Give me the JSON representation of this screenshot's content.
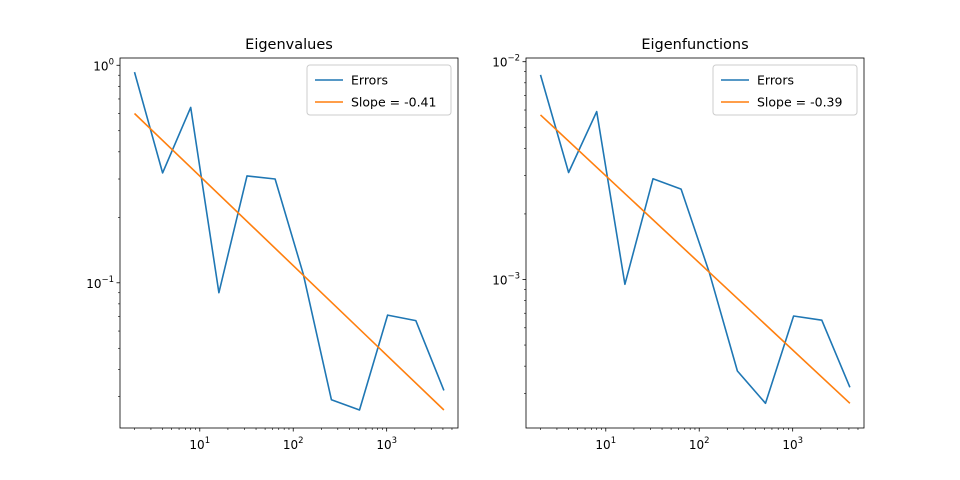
{
  "chart_data": [
    {
      "type": "line",
      "title": "Eigenvalues",
      "xscale": "log",
      "yscale": "log",
      "xlim": [
        1.4,
        5800
      ],
      "ylim": [
        0.0215,
        1.08
      ],
      "xticks": [
        {
          "value": 10,
          "base": "10",
          "exp": "1"
        },
        {
          "value": 100,
          "base": "10",
          "exp": "2"
        },
        {
          "value": 1000,
          "base": "10",
          "exp": "3"
        }
      ],
      "yticks": [
        {
          "value": 1,
          "base": "10",
          "exp": "0"
        },
        {
          "value": 0.1,
          "base": "10",
          "exp": "−1"
        }
      ],
      "legend_position": "top-right",
      "series": [
        {
          "name": "Errors",
          "color": "#1f77b4",
          "x": [
            2,
            4,
            8,
            16,
            32,
            64,
            128,
            256,
            512,
            1024,
            2048,
            4096
          ],
          "y": [
            0.93,
            0.32,
            0.64,
            0.09,
            0.31,
            0.3,
            0.11,
            0.029,
            0.026,
            0.071,
            0.067,
            0.032
          ]
        },
        {
          "name": "Slope = -0.41",
          "color": "#ff7f0e",
          "x": [
            2,
            4096
          ],
          "y": [
            0.6,
            0.026
          ]
        }
      ]
    },
    {
      "type": "line",
      "title": "Eigenfunctions",
      "xscale": "log",
      "yscale": "log",
      "xlim": [
        1.4,
        5800
      ],
      "ylim": [
        0.000208,
        0.0104
      ],
      "xticks": [
        {
          "value": 10,
          "base": "10",
          "exp": "1"
        },
        {
          "value": 100,
          "base": "10",
          "exp": "2"
        },
        {
          "value": 1000,
          "base": "10",
          "exp": "3"
        }
      ],
      "yticks": [
        {
          "value": 0.01,
          "base": "10",
          "exp": "−2"
        },
        {
          "value": 0.001,
          "base": "10",
          "exp": "−3"
        }
      ],
      "legend_position": "top-right",
      "series": [
        {
          "name": "Errors",
          "color": "#1f77b4",
          "x": [
            2,
            4,
            8,
            16,
            32,
            64,
            128,
            256,
            512,
            1024,
            2048,
            4096
          ],
          "y": [
            0.0087,
            0.0031,
            0.0059,
            0.00095,
            0.0029,
            0.0026,
            0.00108,
            0.00038,
            0.00027,
            0.00068,
            0.00065,
            0.00032
          ]
        },
        {
          "name": "Slope = -0.39",
          "color": "#ff7f0e",
          "x": [
            2,
            4096
          ],
          "y": [
            0.0057,
            0.00027
          ]
        }
      ]
    }
  ]
}
